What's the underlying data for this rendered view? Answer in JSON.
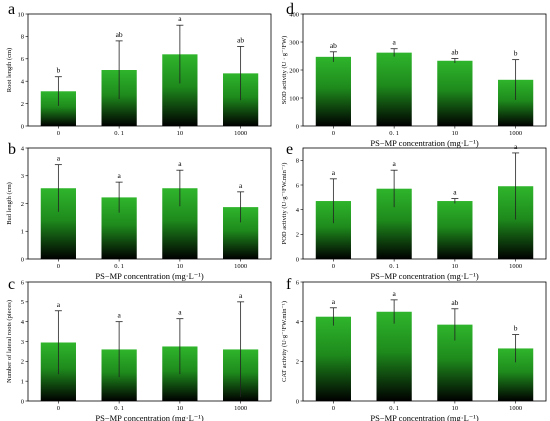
{
  "figure": {
    "panels": [
      {
        "letter": "a",
        "chart_data": {
          "type": "bar",
          "categories": [
            "0",
            "0. 1",
            "10",
            "1000"
          ],
          "values": [
            3.1,
            5.0,
            6.4,
            4.7
          ],
          "errors": [
            1.3,
            2.6,
            2.6,
            2.4
          ],
          "significance": [
            "b",
            "ab",
            "a",
            "ab"
          ],
          "xlabel": "",
          "ylabel": "Root length (cm)",
          "ylim": [
            0,
            10
          ],
          "yticks": [
            0,
            2,
            4,
            6,
            8,
            10
          ],
          "colors": {
            "top": "#2fb52c",
            "bottom": "#000000"
          }
        }
      },
      {
        "letter": "b",
        "chart_data": {
          "type": "bar",
          "categories": [
            "0",
            "0. 1",
            "10",
            "1000"
          ],
          "values": [
            2.55,
            2.22,
            2.55,
            1.87
          ],
          "errors": [
            0.85,
            0.55,
            0.65,
            0.55
          ],
          "significance": [
            "a",
            "a",
            "a",
            "a"
          ],
          "xlabel": "PS−MP concentration (mg·L⁻¹)",
          "ylabel": "Bud length (cm)",
          "ylim": [
            0,
            4
          ],
          "yticks": [
            0,
            1,
            2,
            3,
            4
          ],
          "colors": {
            "top": "#2fb52c",
            "bottom": "#000000"
          }
        }
      },
      {
        "letter": "c",
        "chart_data": {
          "type": "bar",
          "categories": [
            "0",
            "0. 1",
            "10",
            "1000"
          ],
          "values": [
            2.95,
            2.6,
            2.75,
            2.6
          ],
          "errors": [
            1.6,
            1.4,
            1.4,
            2.4
          ],
          "significance": [
            "a",
            "a",
            "a",
            "a"
          ],
          "xlabel": "PS−MP concentration (mg·L⁻¹)",
          "ylabel": "Number of lateral roots (pieces)",
          "ylim": [
            0,
            6
          ],
          "yticks": [
            0,
            1,
            2,
            3,
            4,
            5,
            6
          ],
          "colors": {
            "top": "#2fb52c",
            "bottom": "#000000"
          }
        }
      },
      {
        "letter": "d",
        "chart_data": {
          "type": "bar",
          "categories": [
            "0",
            "0. 1",
            "10",
            "1000"
          ],
          "values": [
            247,
            262,
            233,
            165
          ],
          "errors": [
            18,
            14,
            8,
            72
          ],
          "significance": [
            "ab",
            "a",
            "ab",
            "b"
          ],
          "xlabel": "PS−MP concentration (mg·L⁻¹)",
          "ylabel": "SOD activity (U · g⁻¹FW)",
          "ylim": [
            0,
            400
          ],
          "yticks": [
            0,
            100,
            200,
            300,
            400
          ],
          "colors": {
            "top": "#2fb52c",
            "bottom": "#000000"
          }
        }
      },
      {
        "letter": "e",
        "chart_data": {
          "type": "bar",
          "categories": [
            "0",
            "0. 1",
            "10",
            "1000"
          ],
          "values": [
            4.7,
            5.7,
            4.7,
            5.9
          ],
          "errors": [
            1.8,
            1.5,
            0.2,
            2.7
          ],
          "significance": [
            "a",
            "a",
            "a",
            "a"
          ],
          "xlabel": "PS−MP concentration (mg·L⁻¹)",
          "ylabel": "POD activity (U·g⁻¹FW.min⁻¹)",
          "ylim": [
            0,
            9
          ],
          "yticks": [
            0,
            2,
            4,
            6,
            8
          ],
          "colors": {
            "top": "#2fb52c",
            "bottom": "#000000"
          }
        }
      },
      {
        "letter": "f",
        "chart_data": {
          "type": "bar",
          "categories": [
            "0",
            "0. 1",
            "10",
            "1000"
          ],
          "values": [
            4.25,
            4.5,
            3.85,
            2.65
          ],
          "errors": [
            0.45,
            0.6,
            0.8,
            0.7
          ],
          "significance": [
            "a",
            "a",
            "ab",
            "b"
          ],
          "xlabel": "PS−MP concentration (mg·L⁻¹)",
          "ylabel": "CAT activity (U·g⁻¹FW.min⁻¹)",
          "ylim": [
            0,
            6
          ],
          "yticks": [
            0,
            2,
            4,
            6
          ],
          "colors": {
            "top": "#2fb52c",
            "bottom": "#000000"
          }
        }
      }
    ]
  }
}
